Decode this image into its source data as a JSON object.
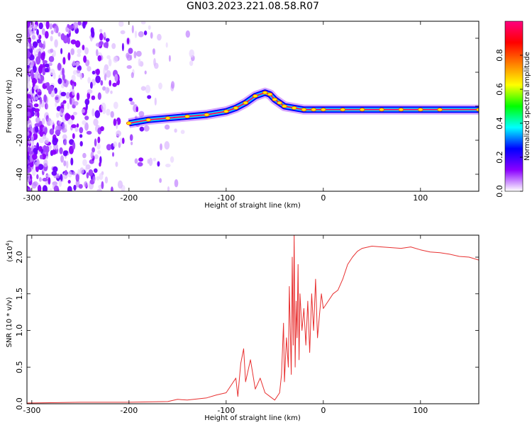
{
  "title": "GN03.2023.221.08.58.R07",
  "chart_data": [
    {
      "type": "heatmap",
      "xlabel": "Height of straight line (km)",
      "ylabel": "Frequency (Hz)",
      "xlim": [
        -305,
        160
      ],
      "ylim": [
        -50,
        50
      ],
      "x_ticks": [
        -300,
        -200,
        -100,
        0,
        100
      ],
      "y_ticks": [
        -40,
        -20,
        0,
        20,
        40
      ],
      "colorbar": {
        "label": "Normalized spectral amplitude",
        "range": [
          0.0,
          1.0
        ],
        "ticks": [
          "0.0",
          "0.2",
          "0.4",
          "0.6",
          "0.8"
        ],
        "colors": [
          "#ffffff",
          "#8b00ff",
          "#0000ff",
          "#00ffff",
          "#00ff00",
          "#ffff00",
          "#ff7f00",
          "#ff0000",
          "#ff0080"
        ]
      },
      "ridge": {
        "x": [
          -200,
          -180,
          -160,
          -140,
          -120,
          -100,
          -90,
          -80,
          -70,
          -60,
          -55,
          -50,
          -45,
          -40,
          -30,
          -20,
          -10,
          0,
          20,
          40,
          60,
          80,
          100,
          120,
          160
        ],
        "y": [
          -10,
          -8,
          -7,
          -6,
          -5,
          -3,
          -1,
          2,
          6,
          8,
          7,
          4,
          2,
          0,
          -1,
          -2,
          -2,
          -2,
          -2,
          -2,
          -2,
          -2,
          -2,
          -2,
          -2
        ]
      }
    },
    {
      "type": "line",
      "xlabel": "Height of straight line (km)",
      "ylabel": "SNR (10 * v/v)",
      "exponent_label": "(x10",
      "exponent_power": "4",
      "xlim": [
        -305,
        160
      ],
      "ylim": [
        0,
        2.3
      ],
      "x_ticks": [
        -300,
        -200,
        -100,
        0,
        100
      ],
      "y_ticks": [
        "0.0",
        "0.5",
        "1.0",
        "1.5",
        "2.0"
      ],
      "series": [
        {
          "color": "#e83030",
          "x": [
            -305,
            -250,
            -200,
            -160,
            -150,
            -140,
            -120,
            -110,
            -100,
            -95,
            -90,
            -88,
            -85,
            -82,
            -80,
            -75,
            -70,
            -65,
            -60,
            -55,
            -50,
            -45,
            -43,
            -41,
            -40,
            -38,
            -36,
            -35,
            -33,
            -32,
            -31,
            -30,
            -29,
            -28,
            -27,
            -26,
            -25,
            -24,
            -22,
            -20,
            -18,
            -16,
            -14,
            -12,
            -10,
            -8,
            -6,
            -4,
            -2,
            0,
            5,
            10,
            15,
            20,
            25,
            30,
            35,
            40,
            50,
            60,
            70,
            80,
            90,
            100,
            110,
            120,
            130,
            140,
            150,
            160
          ],
          "y": [
            0.01,
            0.02,
            0.02,
            0.03,
            0.06,
            0.05,
            0.08,
            0.12,
            0.15,
            0.25,
            0.35,
            0.1,
            0.55,
            0.75,
            0.3,
            0.6,
            0.2,
            0.35,
            0.15,
            0.1,
            0.05,
            0.15,
            0.4,
            1.1,
            0.3,
            0.9,
            0.5,
            1.6,
            0.4,
            2.0,
            0.8,
            2.3,
            0.5,
            1.4,
            0.9,
            1.9,
            0.6,
            1.5,
            1.0,
            1.3,
            0.8,
            1.4,
            0.7,
            1.5,
            1.0,
            1.7,
            0.9,
            1.2,
            1.5,
            1.3,
            1.4,
            1.5,
            1.55,
            1.7,
            1.9,
            2.0,
            2.08,
            2.12,
            2.15,
            2.14,
            2.13,
            2.12,
            2.14,
            2.1,
            2.07,
            2.06,
            2.04,
            2.01,
            2.0,
            1.96
          ]
        }
      ]
    }
  ]
}
